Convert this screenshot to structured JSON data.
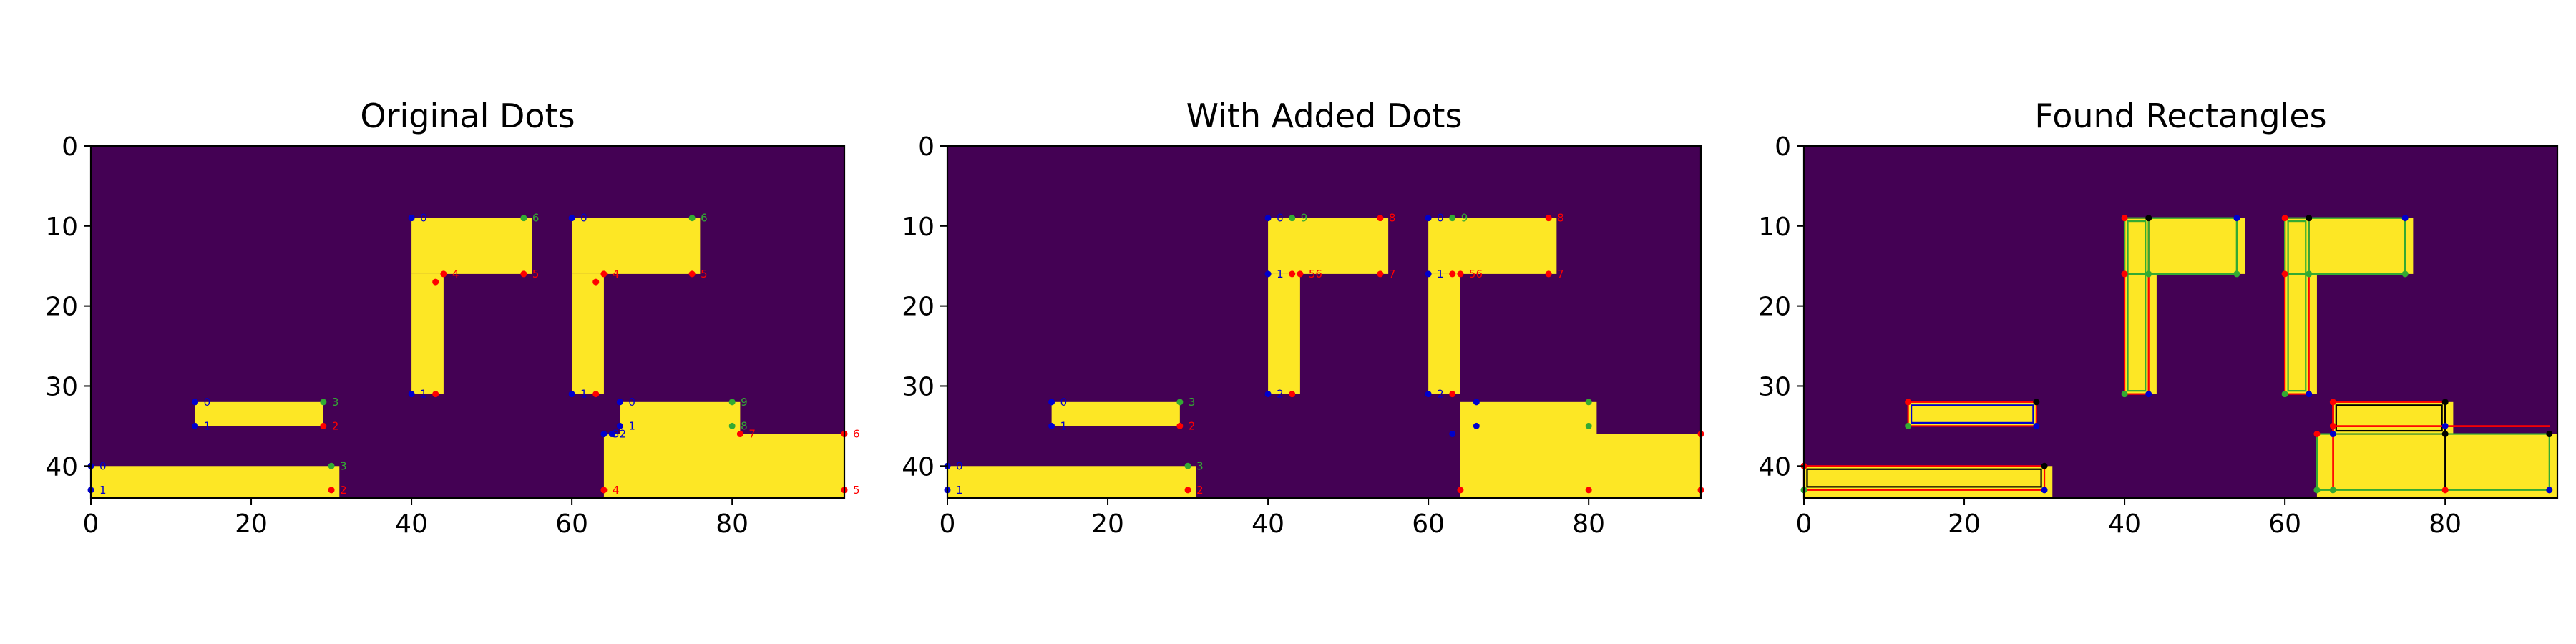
{
  "chart_data": [
    {
      "type": "heatmap",
      "title": "Original Dots",
      "xlim": [
        0,
        94
      ],
      "ylim": [
        0,
        44
      ],
      "xticks": [
        0,
        20,
        40,
        60,
        80
      ],
      "yticks": [
        0,
        10,
        20,
        30,
        40
      ],
      "background_color": "#440154",
      "fill_color": "#fde725",
      "regions": [
        {
          "x0": 13,
          "x1": 29,
          "y0": 32,
          "y1": 35
        },
        {
          "x0": 0,
          "x1": 31,
          "y0": 40,
          "y1": 44
        },
        {
          "x0": 40,
          "x1": 55,
          "y0": 9,
          "y1": 16
        },
        {
          "x0": 40,
          "x1": 44,
          "y0": 16,
          "y1": 31
        },
        {
          "x0": 60,
          "x1": 76,
          "y0": 9,
          "y1": 16
        },
        {
          "x0": 60,
          "x1": 64,
          "y0": 16,
          "y1": 31
        },
        {
          "x0": 66,
          "x1": 81,
          "y0": 32,
          "y1": 36
        },
        {
          "x0": 64,
          "x1": 94,
          "y0": 36,
          "y1": 44
        }
      ],
      "dots": [
        {
          "x": 13,
          "y": 32,
          "label": "0",
          "color": "#0000cc"
        },
        {
          "x": 13,
          "y": 35,
          "label": "1",
          "color": "#0000cc"
        },
        {
          "x": 29,
          "y": 35,
          "label": "2",
          "color": "#ff0000"
        },
        {
          "x": 29,
          "y": 32,
          "label": "3",
          "color": "#33aa33"
        },
        {
          "x": 0,
          "y": 40,
          "label": "0",
          "color": "#0000cc"
        },
        {
          "x": 0,
          "y": 43,
          "label": "1",
          "color": "#0000cc"
        },
        {
          "x": 30,
          "y": 43,
          "label": "2",
          "color": "#ff0000"
        },
        {
          "x": 30,
          "y": 40,
          "label": "3",
          "color": "#33aa33"
        },
        {
          "x": 40,
          "y": 9,
          "label": "0",
          "color": "#0000cc"
        },
        {
          "x": 40,
          "y": 31,
          "label": "1",
          "color": "#0000cc"
        },
        {
          "x": 43,
          "y": 31,
          "label": "",
          "color": "#ff0000"
        },
        {
          "x": 43,
          "y": 17,
          "label": "",
          "color": "#ff0000"
        },
        {
          "x": 44,
          "y": 16,
          "label": "4",
          "color": "#ff0000"
        },
        {
          "x": 54,
          "y": 16,
          "label": "5",
          "color": "#ff0000"
        },
        {
          "x": 54,
          "y": 9,
          "label": "6",
          "color": "#33aa33"
        },
        {
          "x": 60,
          "y": 9,
          "label": "0",
          "color": "#0000cc"
        },
        {
          "x": 60,
          "y": 31,
          "label": "1",
          "color": "#0000cc"
        },
        {
          "x": 63,
          "y": 31,
          "label": "",
          "color": "#ff0000"
        },
        {
          "x": 63,
          "y": 17,
          "label": "",
          "color": "#ff0000"
        },
        {
          "x": 64,
          "y": 16,
          "label": "4",
          "color": "#ff0000"
        },
        {
          "x": 75,
          "y": 16,
          "label": "5",
          "color": "#ff0000"
        },
        {
          "x": 75,
          "y": 9,
          "label": "6",
          "color": "#33aa33"
        },
        {
          "x": 66,
          "y": 32,
          "label": "0",
          "color": "#0000cc"
        },
        {
          "x": 66,
          "y": 35,
          "label": "1",
          "color": "#0000cc"
        },
        {
          "x": 64,
          "y": 36,
          "label": "32",
          "color": "#0000cc"
        },
        {
          "x": 65,
          "y": 36,
          "label": "",
          "color": "#0000cc"
        },
        {
          "x": 64,
          "y": 43,
          "label": "4",
          "color": "#ff0000"
        },
        {
          "x": 94,
          "y": 43,
          "label": "5",
          "color": "#ff0000"
        },
        {
          "x": 94,
          "y": 36,
          "label": "6",
          "color": "#ff0000"
        },
        {
          "x": 81,
          "y": 36,
          "label": "7",
          "color": "#ff0000"
        },
        {
          "x": 80,
          "y": 35,
          "label": "8",
          "color": "#33aa33"
        },
        {
          "x": 80,
          "y": 32,
          "label": "9",
          "color": "#33aa33"
        }
      ],
      "rectangles": []
    },
    {
      "type": "heatmap",
      "title": "With Added Dots",
      "xlim": [
        0,
        94
      ],
      "ylim": [
        0,
        44
      ],
      "xticks": [
        0,
        20,
        40,
        60,
        80
      ],
      "yticks": [
        0,
        10,
        20,
        30,
        40
      ],
      "background_color": "#440154",
      "fill_color": "#fde725",
      "regions": [
        {
          "x0": 13,
          "x1": 29,
          "y0": 32,
          "y1": 35
        },
        {
          "x0": 0,
          "x1": 31,
          "y0": 40,
          "y1": 44
        },
        {
          "x0": 40,
          "x1": 55,
          "y0": 9,
          "y1": 16
        },
        {
          "x0": 40,
          "x1": 44,
          "y0": 16,
          "y1": 31
        },
        {
          "x0": 60,
          "x1": 76,
          "y0": 9,
          "y1": 16
        },
        {
          "x0": 60,
          "x1": 64,
          "y0": 16,
          "y1": 31
        },
        {
          "x0": 64,
          "x1": 81,
          "y0": 32,
          "y1": 36
        },
        {
          "x0": 64,
          "x1": 94,
          "y0": 36,
          "y1": 44
        }
      ],
      "dots": [
        {
          "x": 13,
          "y": 32,
          "label": "0",
          "color": "#0000cc"
        },
        {
          "x": 13,
          "y": 35,
          "label": "1",
          "color": "#0000cc"
        },
        {
          "x": 29,
          "y": 35,
          "label": "2",
          "color": "#ff0000"
        },
        {
          "x": 29,
          "y": 32,
          "label": "3",
          "color": "#33aa33"
        },
        {
          "x": 0,
          "y": 40,
          "label": "0",
          "color": "#0000cc"
        },
        {
          "x": 0,
          "y": 43,
          "label": "1",
          "color": "#0000cc"
        },
        {
          "x": 30,
          "y": 43,
          "label": "2",
          "color": "#ff0000"
        },
        {
          "x": 30,
          "y": 40,
          "label": "3",
          "color": "#33aa33"
        },
        {
          "x": 40,
          "y": 9,
          "label": "0",
          "color": "#0000cc"
        },
        {
          "x": 43,
          "y": 9,
          "label": "9",
          "color": "#33aa33"
        },
        {
          "x": 54,
          "y": 9,
          "label": "8",
          "color": "#ff0000"
        },
        {
          "x": 54,
          "y": 16,
          "label": "7",
          "color": "#ff0000"
        },
        {
          "x": 40,
          "y": 16,
          "label": "1",
          "color": "#0000cc"
        },
        {
          "x": 43,
          "y": 16,
          "label": "",
          "color": "#ff0000"
        },
        {
          "x": 44,
          "y": 16,
          "label": "56",
          "color": "#ff0000"
        },
        {
          "x": 40,
          "y": 31,
          "label": "2",
          "color": "#0000cc"
        },
        {
          "x": 43,
          "y": 31,
          "label": "",
          "color": "#ff0000"
        },
        {
          "x": 60,
          "y": 9,
          "label": "0",
          "color": "#0000cc"
        },
        {
          "x": 63,
          "y": 9,
          "label": "9",
          "color": "#33aa33"
        },
        {
          "x": 75,
          "y": 9,
          "label": "8",
          "color": "#ff0000"
        },
        {
          "x": 75,
          "y": 16,
          "label": "7",
          "color": "#ff0000"
        },
        {
          "x": 60,
          "y": 16,
          "label": "1",
          "color": "#0000cc"
        },
        {
          "x": 63,
          "y": 16,
          "label": "",
          "color": "#ff0000"
        },
        {
          "x": 64,
          "y": 16,
          "label": "56",
          "color": "#ff0000"
        },
        {
          "x": 60,
          "y": 31,
          "label": "2",
          "color": "#0000cc"
        },
        {
          "x": 63,
          "y": 31,
          "label": "",
          "color": "#ff0000"
        },
        {
          "x": 66,
          "y": 32,
          "label": "",
          "color": "#0000cc"
        },
        {
          "x": 80,
          "y": 32,
          "label": "",
          "color": "#33aa33"
        },
        {
          "x": 66,
          "y": 35,
          "label": "",
          "color": "#0000cc"
        },
        {
          "x": 80,
          "y": 35,
          "label": "",
          "color": "#33aa33"
        },
        {
          "x": 63,
          "y": 36,
          "label": "",
          "color": "#0000cc"
        },
        {
          "x": 64,
          "y": 43,
          "label": "",
          "color": "#ff0000"
        },
        {
          "x": 80,
          "y": 43,
          "label": "",
          "color": "#ff0000"
        },
        {
          "x": 94,
          "y": 43,
          "label": "",
          "color": "#ff0000"
        },
        {
          "x": 94,
          "y": 36,
          "label": "",
          "color": "#ff0000"
        }
      ],
      "rectangles": []
    },
    {
      "type": "heatmap",
      "title": "Found Rectangles",
      "xlim": [
        0,
        94
      ],
      "ylim": [
        0,
        44
      ],
      "xticks": [
        0,
        20,
        40,
        60,
        80
      ],
      "yticks": [
        0,
        10,
        20,
        30,
        40
      ],
      "background_color": "#440154",
      "fill_color": "#fde725",
      "regions": [
        {
          "x0": 13,
          "x1": 29,
          "y0": 32,
          "y1": 35
        },
        {
          "x0": 0,
          "x1": 31,
          "y0": 40,
          "y1": 44
        },
        {
          "x0": 40,
          "x1": 55,
          "y0": 9,
          "y1": 16
        },
        {
          "x0": 40,
          "x1": 44,
          "y0": 16,
          "y1": 31
        },
        {
          "x0": 60,
          "x1": 76,
          "y0": 9,
          "y1": 16
        },
        {
          "x0": 60,
          "x1": 64,
          "y0": 16,
          "y1": 31
        },
        {
          "x0": 66,
          "x1": 81,
          "y0": 32,
          "y1": 36
        },
        {
          "x0": 64,
          "x1": 94,
          "y0": 36,
          "y1": 44
        }
      ],
      "dots": [
        {
          "x": 13,
          "y": 32,
          "label": "",
          "color": "#ff0000"
        },
        {
          "x": 29,
          "y": 32,
          "label": "",
          "color": "#000000"
        },
        {
          "x": 13,
          "y": 35,
          "label": "",
          "color": "#33aa33"
        },
        {
          "x": 29,
          "y": 35,
          "label": "",
          "color": "#0000cc"
        },
        {
          "x": 0,
          "y": 40,
          "label": "",
          "color": "#ff0000"
        },
        {
          "x": 30,
          "y": 40,
          "label": "",
          "color": "#000000"
        },
        {
          "x": 0,
          "y": 43,
          "label": "",
          "color": "#33aa33"
        },
        {
          "x": 30,
          "y": 43,
          "label": "",
          "color": "#0000cc"
        },
        {
          "x": 40,
          "y": 9,
          "label": "",
          "color": "#ff0000"
        },
        {
          "x": 43,
          "y": 9,
          "label": "",
          "color": "#000000"
        },
        {
          "x": 54,
          "y": 9,
          "label": "",
          "color": "#0000cc"
        },
        {
          "x": 40,
          "y": 16,
          "label": "",
          "color": "#ff0000"
        },
        {
          "x": 43,
          "y": 16,
          "label": "",
          "color": "#33aa33"
        },
        {
          "x": 54,
          "y": 16,
          "label": "",
          "color": "#33aa33"
        },
        {
          "x": 40,
          "y": 31,
          "label": "",
          "color": "#33aa33"
        },
        {
          "x": 43,
          "y": 31,
          "label": "",
          "color": "#0000cc"
        },
        {
          "x": 60,
          "y": 9,
          "label": "",
          "color": "#ff0000"
        },
        {
          "x": 63,
          "y": 9,
          "label": "",
          "color": "#000000"
        },
        {
          "x": 75,
          "y": 9,
          "label": "",
          "color": "#0000cc"
        },
        {
          "x": 60,
          "y": 16,
          "label": "",
          "color": "#ff0000"
        },
        {
          "x": 63,
          "y": 16,
          "label": "",
          "color": "#33aa33"
        },
        {
          "x": 75,
          "y": 16,
          "label": "",
          "color": "#33aa33"
        },
        {
          "x": 60,
          "y": 31,
          "label": "",
          "color": "#33aa33"
        },
        {
          "x": 63,
          "y": 31,
          "label": "",
          "color": "#0000cc"
        },
        {
          "x": 66,
          "y": 32,
          "label": "",
          "color": "#ff0000"
        },
        {
          "x": 80,
          "y": 32,
          "label": "",
          "color": "#000000"
        },
        {
          "x": 66,
          "y": 35,
          "label": "",
          "color": "#ff0000"
        },
        {
          "x": 80,
          "y": 35,
          "label": "",
          "color": "#0000cc"
        },
        {
          "x": 64,
          "y": 36,
          "label": "",
          "color": "#ff0000"
        },
        {
          "x": 66,
          "y": 36,
          "label": "",
          "color": "#0000cc"
        },
        {
          "x": 80,
          "y": 36,
          "label": "",
          "color": "#000000"
        },
        {
          "x": 93,
          "y": 36,
          "label": "",
          "color": "#000000"
        },
        {
          "x": 64,
          "y": 43,
          "label": "",
          "color": "#33aa33"
        },
        {
          "x": 66,
          "y": 43,
          "label": "",
          "color": "#33aa33"
        },
        {
          "x": 80,
          "y": 43,
          "label": "",
          "color": "#ff0000"
        },
        {
          "x": 93,
          "y": 43,
          "label": "",
          "color": "#0000cc"
        }
      ],
      "rectangles": [
        {
          "x0": 13,
          "y0": 32,
          "x1": 29,
          "y1": 35,
          "color": "#ff0000"
        },
        {
          "x0": 13.4,
          "y0": 32.4,
          "x1": 28.6,
          "y1": 34.6,
          "color": "#0000cc"
        },
        {
          "x0": 0,
          "y0": 40,
          "x1": 30,
          "y1": 43,
          "color": "#ff0000"
        },
        {
          "x0": 0.4,
          "y0": 40.4,
          "x1": 29.6,
          "y1": 42.6,
          "color": "#000000"
        },
        {
          "x0": 40,
          "y0": 9,
          "x1": 43,
          "y1": 31,
          "color": "#ff0000"
        },
        {
          "x0": 40.4,
          "y0": 9.4,
          "x1": 42.6,
          "y1": 30.6,
          "color": "#33aa33"
        },
        {
          "x0": 43,
          "y0": 9,
          "x1": 54,
          "y1": 16,
          "color": "#33aa33"
        },
        {
          "x0": 40,
          "y0": 9,
          "x1": 54,
          "y1": 16,
          "color": "#33aa33"
        },
        {
          "x0": 60,
          "y0": 9,
          "x1": 63,
          "y1": 31,
          "color": "#ff0000"
        },
        {
          "x0": 60.4,
          "y0": 9.4,
          "x1": 62.6,
          "y1": 30.6,
          "color": "#33aa33"
        },
        {
          "x0": 63,
          "y0": 9,
          "x1": 75,
          "y1": 16,
          "color": "#33aa33"
        },
        {
          "x0": 60,
          "y0": 9,
          "x1": 75,
          "y1": 16,
          "color": "#33aa33"
        },
        {
          "x0": 66,
          "y0": 32,
          "x1": 80,
          "y1": 36,
          "color": "#ff0000"
        },
        {
          "x0": 66.4,
          "y0": 32.4,
          "x1": 79.6,
          "y1": 35.6,
          "color": "#000000"
        },
        {
          "x0": 64,
          "y0": 36,
          "x1": 93,
          "y1": 43,
          "color": "#33aa33"
        },
        {
          "x0": 66,
          "y0": 35,
          "x1": 93,
          "y1": 35,
          "color": "#ff0000"
        },
        {
          "x0": 66,
          "y0": 32,
          "x1": 66,
          "y1": 43,
          "color": "#ff0000"
        },
        {
          "x0": 80,
          "y0": 32,
          "x1": 80,
          "y1": 43,
          "color": "#000000"
        }
      ]
    }
  ]
}
